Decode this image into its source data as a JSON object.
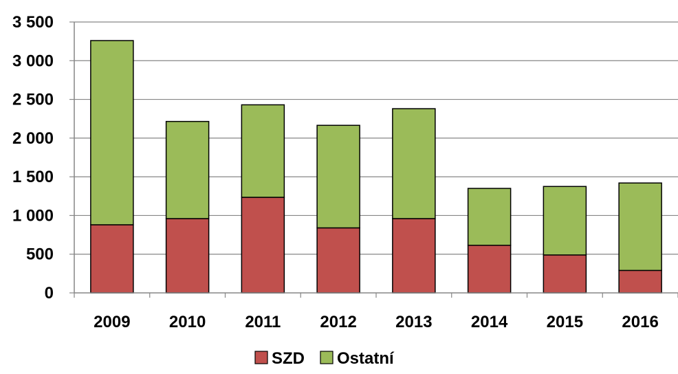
{
  "chart_data": {
    "type": "bar",
    "stacked": true,
    "categories": [
      "2009",
      "2010",
      "2011",
      "2012",
      "2013",
      "2014",
      "2015",
      "2016"
    ],
    "series": [
      {
        "name": "SZD",
        "color": "#c0504d",
        "values": [
          880,
          960,
          1235,
          840,
          960,
          615,
          490,
          290
        ]
      },
      {
        "name": "Ostatní",
        "color": "#9bbb59",
        "values": [
          2380,
          1255,
          1195,
          1325,
          1420,
          735,
          885,
          1130
        ]
      }
    ],
    "ylim": [
      0,
      3500
    ],
    "yticks": [
      0,
      500,
      1000,
      1500,
      2000,
      2500,
      3000,
      3500
    ],
    "ytick_labels": [
      "0",
      "500",
      "1 000",
      "1 500",
      "2 000",
      "2 500",
      "3 000",
      "3 500"
    ],
    "grid": true,
    "legend_position": "bottom",
    "title": "",
    "xlabel": "",
    "ylabel": ""
  }
}
